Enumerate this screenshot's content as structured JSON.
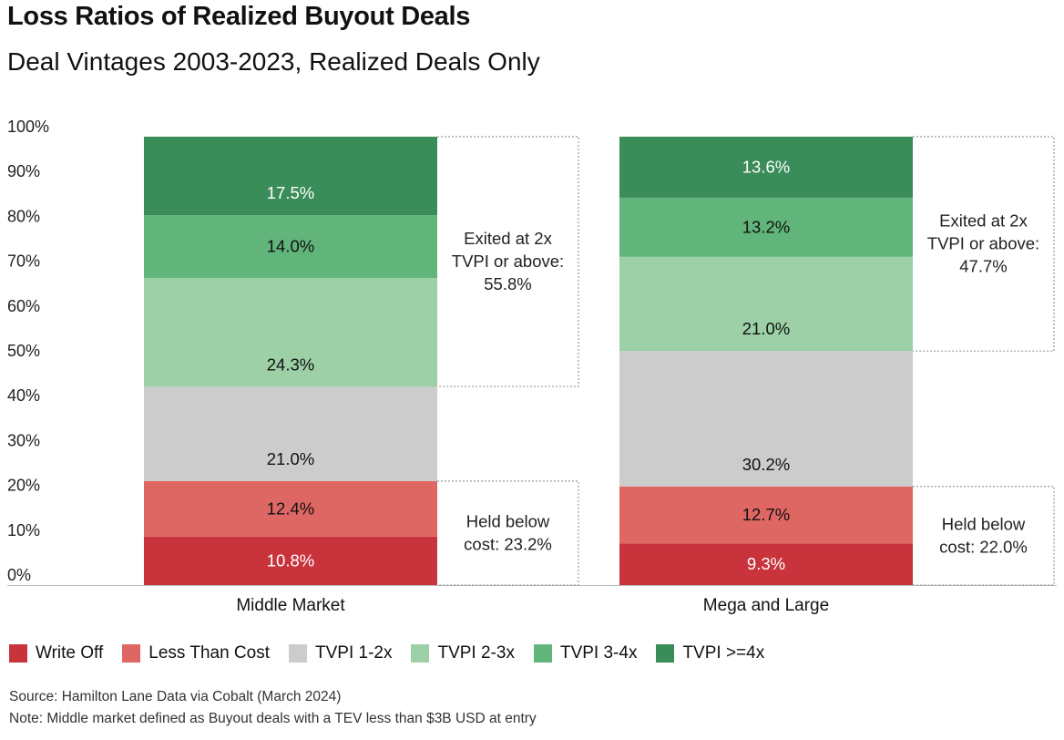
{
  "header": {
    "title": "Loss Ratios of Realized Buyout Deals",
    "subtitle": "Deal Vintages 2003-2023, Realized Deals Only"
  },
  "colors": {
    "write_off": "#c8333c",
    "less_than_cost": "#df6763",
    "tvpi_1_2": "#cccccc",
    "tvpi_2_3": "#9dd0a7",
    "tvpi_3_4": "#62b57a",
    "tvpi_4_plus": "#3a8c58"
  },
  "chart_data": {
    "type": "bar",
    "stacked": true,
    "title": "Loss Ratios of Realized Buyout Deals",
    "subtitle": "Deal Vintages 2003-2023, Realized Deals Only",
    "categories": [
      "Middle Market",
      "Mega and Large"
    ],
    "y_ticks": [
      "0%",
      "10%",
      "20%",
      "30%",
      "40%",
      "50%",
      "60%",
      "70%",
      "80%",
      "90%",
      "100%"
    ],
    "ylim": [
      0,
      100
    ],
    "series": [
      {
        "name": "Write Off",
        "color": "#c8333c",
        "text_color": "#ffffff",
        "values": [
          10.8,
          9.3
        ],
        "labels": [
          "10.8%",
          "9.3%"
        ]
      },
      {
        "name": "Less Than Cost",
        "color": "#df6763",
        "text_color": "#111111",
        "values": [
          12.4,
          12.7
        ],
        "labels": [
          "12.4%",
          "12.7%"
        ]
      },
      {
        "name": "TVPI 1-2x",
        "color": "#cccccc",
        "text_color": "#111111",
        "values": [
          21.0,
          30.2
        ],
        "labels": [
          "21.0%",
          "30.2%"
        ]
      },
      {
        "name": "TVPI 2-3x",
        "color": "#9dd0a7",
        "text_color": "#111111",
        "values": [
          24.3,
          21.0
        ],
        "labels": [
          "24.3%",
          "21.0%"
        ]
      },
      {
        "name": "TVPI 3-4x",
        "color": "#62b57a",
        "text_color": "#111111",
        "values": [
          14.0,
          13.2
        ],
        "labels": [
          "14.0%",
          "13.2%"
        ]
      },
      {
        "name": "TVPI >=4x",
        "color": "#3a8c58",
        "text_color": "#ffffff",
        "values": [
          17.5,
          13.6
        ],
        "labels": [
          "17.5%",
          "13.6%"
        ]
      }
    ],
    "annotations": [
      {
        "category": "Middle Market",
        "span": [
          44.3,
          100
        ],
        "lines": [
          "Exited at 2x",
          "TVPI or above:",
          "55.8%"
        ]
      },
      {
        "category": "Middle Market",
        "span": [
          0,
          23.2
        ],
        "lines": [
          "Held below",
          "cost: 23.2%"
        ]
      },
      {
        "category": "Mega and Large",
        "span": [
          52.2,
          100
        ],
        "lines": [
          "Exited at 2x",
          "TVPI or above:",
          "47.7%"
        ]
      },
      {
        "category": "Mega and Large",
        "span": [
          0,
          22.0
        ],
        "lines": [
          "Held below",
          "cost: 22.0%"
        ]
      }
    ],
    "legend_position": "bottom-left"
  },
  "legend": {
    "items": [
      {
        "label": "Write Off",
        "color": "#c8333c"
      },
      {
        "label": "Less Than Cost",
        "color": "#df6763"
      },
      {
        "label": "TVPI 1-2x",
        "color": "#cccccc"
      },
      {
        "label": "TVPI 2-3x",
        "color": "#9dd0a7"
      },
      {
        "label": "TVPI 3-4x",
        "color": "#62b57a"
      },
      {
        "label": "TVPI >=4x",
        "color": "#3a8c58"
      }
    ]
  },
  "footnotes": {
    "source": "Source: Hamilton Lane Data via Cobalt (March 2024)",
    "note": "Note: Middle market defined as Buyout deals with a TEV less than $3B USD at entry"
  }
}
